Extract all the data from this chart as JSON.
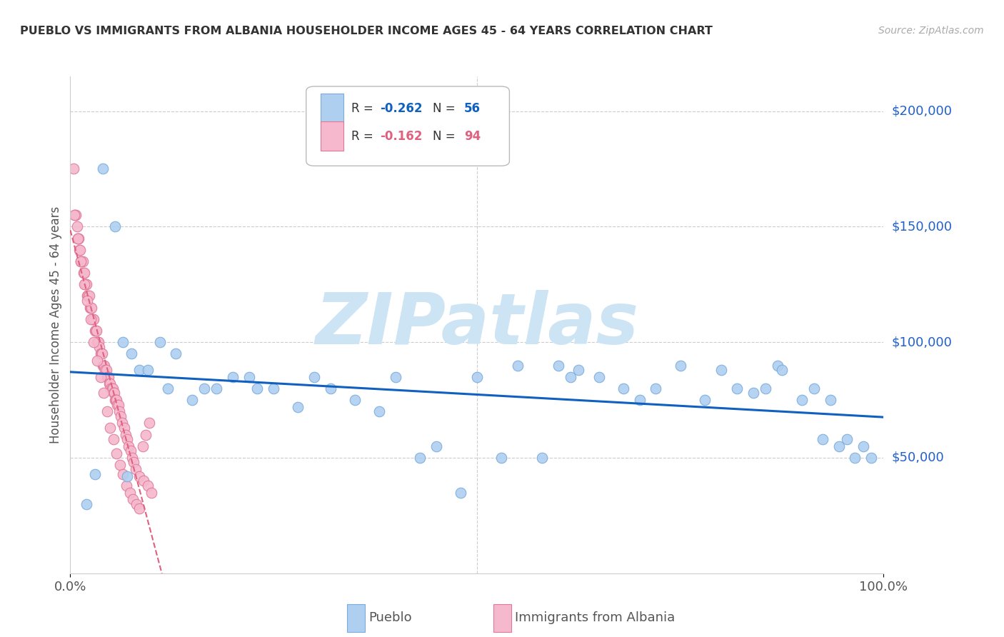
{
  "title": "PUEBLO VS IMMIGRANTS FROM ALBANIA HOUSEHOLDER INCOME AGES 45 - 64 YEARS CORRELATION CHART",
  "source": "Source: ZipAtlas.com",
  "ylabel": "Householder Income Ages 45 - 64 years",
  "y_tick_labels": [
    "$50,000",
    "$100,000",
    "$150,000",
    "$200,000"
  ],
  "y_tick_values": [
    50000,
    100000,
    150000,
    200000
  ],
  "y_min": 0,
  "y_max": 215000,
  "x_min": 0,
  "x_max": 1.0,
  "pueblo_color": "#aecff0",
  "pueblo_edge_color": "#7aabdc",
  "albania_color": "#f5b8cc",
  "albania_edge_color": "#e07898",
  "blue_line_color": "#1060c0",
  "pink_line_color": "#e06080",
  "grid_color": "#cccccc",
  "background_color": "#ffffff",
  "legend_r_pueblo": "R = ",
  "legend_v_pueblo": "-0.262",
  "legend_n_pueblo": "N = ",
  "legend_nv_pueblo": "56",
  "legend_r_albania": "R = ",
  "legend_v_albania": "-0.162",
  "legend_n_albania": "N = ",
  "legend_nv_albania": "94",
  "pueblo_color_legend": "#aecff0",
  "albania_color_legend": "#f5b8cc",
  "pueblo_x": [
    0.02,
    0.04,
    0.055,
    0.065,
    0.075,
    0.085,
    0.095,
    0.11,
    0.13,
    0.15,
    0.18,
    0.2,
    0.22,
    0.25,
    0.28,
    0.3,
    0.35,
    0.4,
    0.45,
    0.48,
    0.5,
    0.55,
    0.6,
    0.615,
    0.625,
    0.65,
    0.68,
    0.7,
    0.72,
    0.75,
    0.78,
    0.8,
    0.82,
    0.84,
    0.855,
    0.87,
    0.875,
    0.9,
    0.915,
    0.925,
    0.935,
    0.945,
    0.955,
    0.965,
    0.975,
    0.985,
    0.03,
    0.07,
    0.12,
    0.165,
    0.23,
    0.32,
    0.38,
    0.43,
    0.53,
    0.58
  ],
  "pueblo_y": [
    30000,
    175000,
    150000,
    100000,
    95000,
    88000,
    88000,
    100000,
    95000,
    75000,
    80000,
    85000,
    85000,
    80000,
    72000,
    85000,
    75000,
    85000,
    55000,
    35000,
    85000,
    90000,
    90000,
    85000,
    88000,
    85000,
    80000,
    75000,
    80000,
    90000,
    75000,
    88000,
    80000,
    78000,
    80000,
    90000,
    88000,
    75000,
    80000,
    58000,
    75000,
    55000,
    58000,
    50000,
    55000,
    50000,
    43000,
    42000,
    80000,
    80000,
    80000,
    80000,
    70000,
    50000,
    50000,
    50000
  ],
  "albania_x": [
    0.004,
    0.006,
    0.007,
    0.008,
    0.009,
    0.01,
    0.011,
    0.012,
    0.013,
    0.014,
    0.015,
    0.016,
    0.017,
    0.018,
    0.019,
    0.02,
    0.021,
    0.022,
    0.023,
    0.024,
    0.025,
    0.026,
    0.027,
    0.028,
    0.029,
    0.03,
    0.031,
    0.032,
    0.033,
    0.034,
    0.035,
    0.036,
    0.037,
    0.038,
    0.039,
    0.04,
    0.041,
    0.042,
    0.043,
    0.044,
    0.045,
    0.046,
    0.047,
    0.048,
    0.049,
    0.05,
    0.051,
    0.052,
    0.053,
    0.054,
    0.055,
    0.056,
    0.057,
    0.058,
    0.059,
    0.06,
    0.062,
    0.064,
    0.066,
    0.068,
    0.07,
    0.072,
    0.074,
    0.076,
    0.078,
    0.08,
    0.085,
    0.09,
    0.095,
    0.1,
    0.005,
    0.009,
    0.013,
    0.017,
    0.021,
    0.025,
    0.029,
    0.033,
    0.037,
    0.041,
    0.045,
    0.049,
    0.053,
    0.057,
    0.061,
    0.065,
    0.069,
    0.073,
    0.077,
    0.081,
    0.085,
    0.089,
    0.093,
    0.097
  ],
  "albania_y": [
    175000,
    155000,
    155000,
    150000,
    145000,
    145000,
    140000,
    140000,
    135000,
    135000,
    135000,
    130000,
    130000,
    125000,
    125000,
    125000,
    120000,
    120000,
    120000,
    115000,
    115000,
    115000,
    110000,
    110000,
    110000,
    105000,
    105000,
    105000,
    100000,
    100000,
    100000,
    98000,
    95000,
    95000,
    95000,
    90000,
    90000,
    90000,
    88000,
    88000,
    85000,
    85000,
    85000,
    82000,
    82000,
    80000,
    80000,
    80000,
    78000,
    78000,
    75000,
    75000,
    75000,
    73000,
    73000,
    70000,
    68000,
    65000,
    63000,
    60000,
    58000,
    55000,
    53000,
    50000,
    48000,
    45000,
    42000,
    40000,
    38000,
    35000,
    155000,
    145000,
    135000,
    125000,
    118000,
    110000,
    100000,
    92000,
    85000,
    78000,
    70000,
    63000,
    58000,
    52000,
    47000,
    43000,
    38000,
    35000,
    32000,
    30000,
    28000,
    55000,
    60000,
    65000
  ],
  "pueblo_R": -0.262,
  "albania_R": -0.162,
  "watermark": "ZIPatlas",
  "watermark_color": "#cde4f5",
  "title_color": "#333333",
  "source_color": "#aaaaaa",
  "axis_label_color": "#555555",
  "tick_label_color": "#555555",
  "right_label_color": "#2060cc"
}
